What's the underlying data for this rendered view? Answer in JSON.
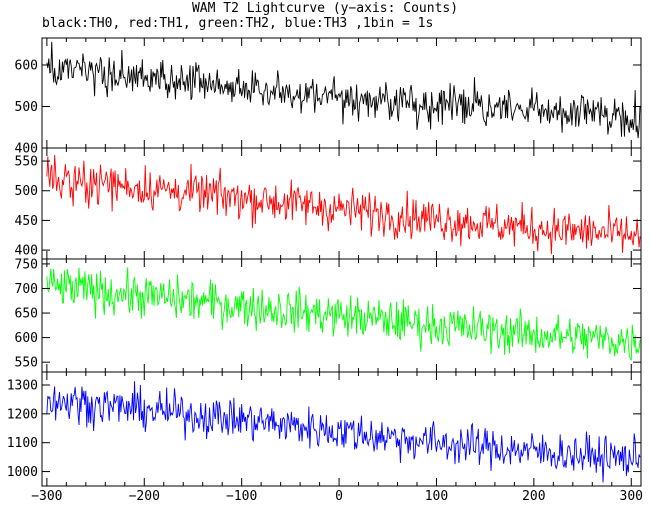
{
  "title": "WAM T2 Lightcurve (y−axis: Counts)",
  "subtitle": "black:TH0, red:TH1, green:TH2, blue:TH3 ,1bin = 1s",
  "chart_data": {
    "type": "line",
    "xlim": [
      -305,
      310
    ],
    "x_ticks": [
      -300,
      -200,
      -100,
      0,
      100,
      200,
      300
    ],
    "x_tick_labels": [
      "−300",
      "−200",
      "−100",
      "0",
      "100",
      "200",
      "300"
    ],
    "bin_seconds": 1,
    "panels": [
      {
        "name": "TH0",
        "color": "#000000",
        "ylim": [
          400,
          665
        ],
        "y_ticks": [
          400,
          500,
          600
        ],
        "y_tick_labels": [
          "400",
          "500",
          "600"
        ],
        "trend": {
          "x": [
            -300,
            -200,
            -100,
            0,
            100,
            200,
            300
          ],
          "y": [
            590,
            567,
            545,
            523,
            505,
            490,
            478
          ]
        },
        "noise": 24
      },
      {
        "name": "TH1",
        "color": "#ff0000",
        "ylim": [
          385,
          572
        ],
        "y_ticks": [
          400,
          450,
          500,
          550
        ],
        "y_tick_labels": [
          "400",
          "450",
          "500",
          "550"
        ],
        "trend": {
          "x": [
            -300,
            -200,
            -100,
            0,
            100,
            200,
            300
          ],
          "y": [
            522,
            505,
            488,
            470,
            452,
            437,
            425
          ]
        },
        "noise": 18
      },
      {
        "name": "TH2",
        "color": "#00ff00",
        "ylim": [
          530,
          760
        ],
        "y_ticks": [
          550,
          600,
          650,
          700,
          750
        ],
        "y_tick_labels": [
          "550",
          "600",
          "650",
          "700",
          "750"
        ],
        "trend": {
          "x": [
            -300,
            -200,
            -100,
            0,
            100,
            200,
            300
          ],
          "y": [
            705,
            685,
            665,
            645,
            625,
            607,
            592
          ]
        },
        "noise": 22
      },
      {
        "name": "TH3",
        "color": "#0000ff",
        "ylim": [
          950,
          1345
        ],
        "y_ticks": [
          1000,
          1100,
          1200,
          1300
        ],
        "y_tick_labels": [
          "1000",
          "1100",
          "1200",
          "1300"
        ],
        "trend": {
          "x": [
            -300,
            -200,
            -100,
            0,
            100,
            200,
            300
          ],
          "y": [
            1250,
            1215,
            1180,
            1140,
            1100,
            1070,
            1045
          ]
        },
        "noise": 35
      }
    ]
  }
}
